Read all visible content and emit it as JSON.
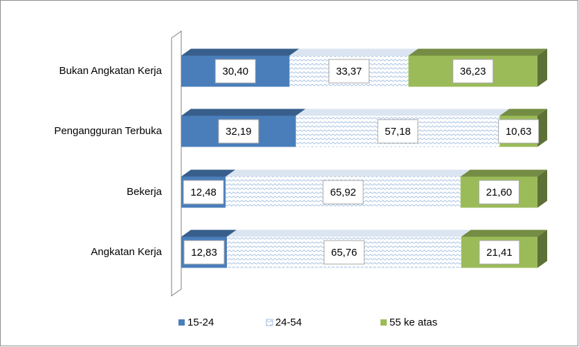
{
  "chart_data": {
    "type": "bar",
    "orientation": "horizontal",
    "stacked": true,
    "categories": [
      "Bukan Angkatan Kerja",
      "Pengangguran Terbuka",
      "Bekerja",
      "Angkatan Kerja"
    ],
    "xlim": [
      0,
      100
    ],
    "series": [
      {
        "name": "15-24",
        "color": "#4a7ebb",
        "values": [
          30.4,
          32.19,
          12.48,
          12.83
        ],
        "value_labels": [
          "30,40",
          "32,19",
          "12,48",
          "12,83"
        ]
      },
      {
        "name": "24-54",
        "color": "#c6d9f1",
        "values": [
          33.37,
          57.18,
          65.92,
          65.76
        ],
        "value_labels": [
          "33,37",
          "57,18",
          "65,92",
          "65,76"
        ]
      },
      {
        "name": "55 ke atas",
        "color": "#9bbb59",
        "values": [
          36.23,
          10.63,
          21.6,
          21.41
        ],
        "value_labels": [
          "36,23",
          "10,63",
          "21,60",
          "21,41"
        ]
      }
    ],
    "legend": "bottom"
  }
}
